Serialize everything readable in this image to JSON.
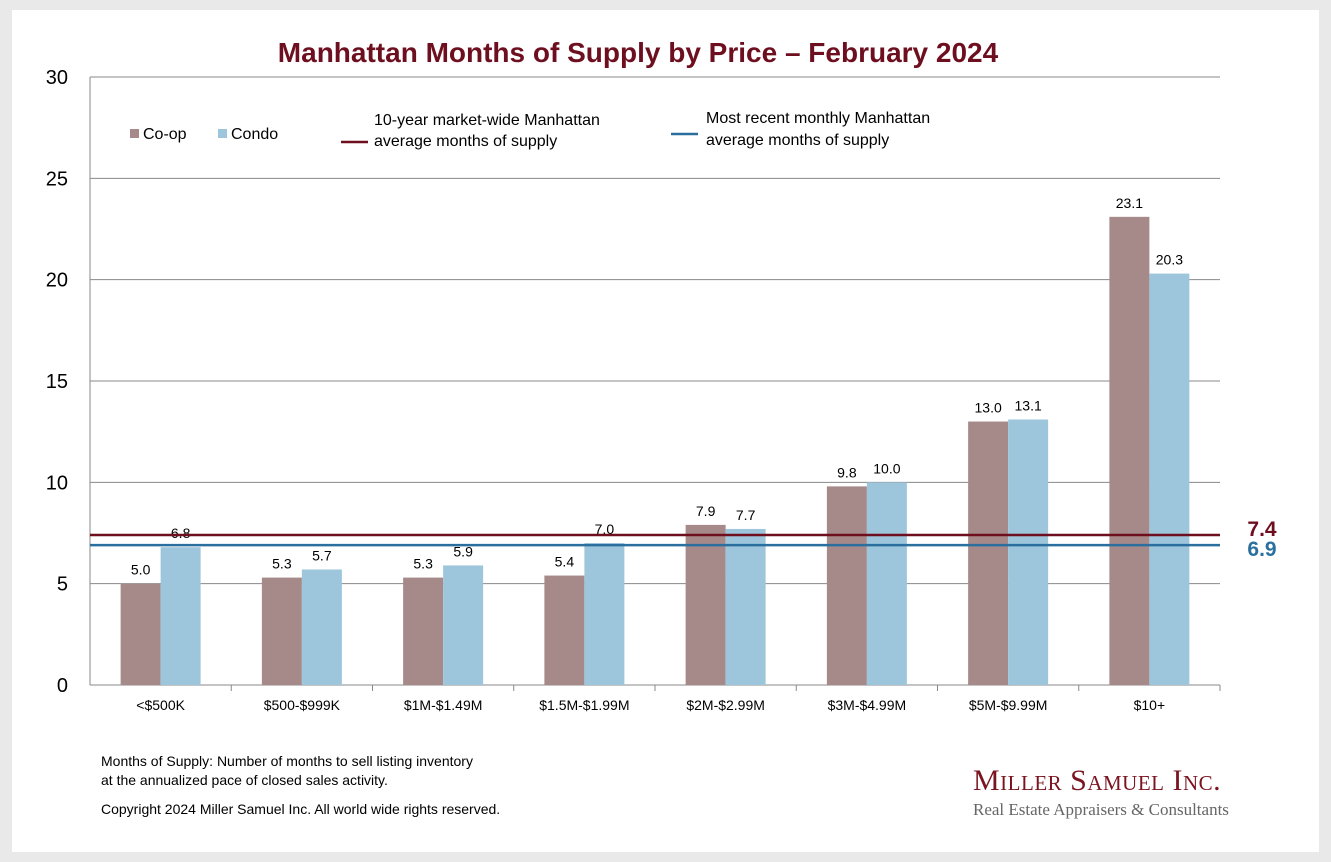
{
  "chart_data": {
    "type": "bar",
    "title": "Manhattan Months of Supply by Price – February 2024",
    "categories": [
      "<$500K",
      "$500-$999K",
      "$1M-$1.49M",
      "$1.5M-$1.99M",
      "$2M-$2.99M",
      "$3M-$4.99M",
      "$5M-$9.99M",
      "$10+"
    ],
    "series": [
      {
        "name": "Co-op",
        "color": "#a68a8a",
        "values": [
          5.0,
          5.3,
          5.3,
          5.4,
          7.9,
          9.8,
          13.0,
          23.1
        ]
      },
      {
        "name": "Condo",
        "color": "#9dc6dc",
        "values": [
          6.8,
          5.7,
          5.9,
          7.0,
          7.7,
          10.0,
          13.1,
          20.3
        ]
      }
    ],
    "reference_lines": [
      {
        "name": "10-year market-wide Manhattan average months of supply",
        "line1": "10-year market-wide Manhattan",
        "line2": "average months of supply",
        "value": 7.4,
        "label": "7.4",
        "color": "#6e0f1f"
      },
      {
        "name": "Most recent monthly Manhattan average months of supply",
        "line1": "Most recent monthly Manhattan",
        "line2": "average months of supply",
        "value": 6.9,
        "label": "6.9",
        "color": "#2a6f9e"
      }
    ],
    "ylim": [
      0,
      30
    ],
    "yticks": [
      0,
      5,
      10,
      15,
      20,
      25,
      30
    ],
    "grid": true,
    "legend": "top-left",
    "xlabel": "",
    "ylabel": ""
  },
  "notes": {
    "definition_line1": "Months of Supply: Number of months to sell listing inventory",
    "definition_line2": "at the annualized pace of closed sales activity.",
    "copyright": "Copyright 2024 Miller Samuel Inc.  All world wide rights reserved."
  },
  "logo": {
    "name": "Miller Samuel Inc.",
    "tagline": "Real Estate Appraisers & Consultants"
  }
}
